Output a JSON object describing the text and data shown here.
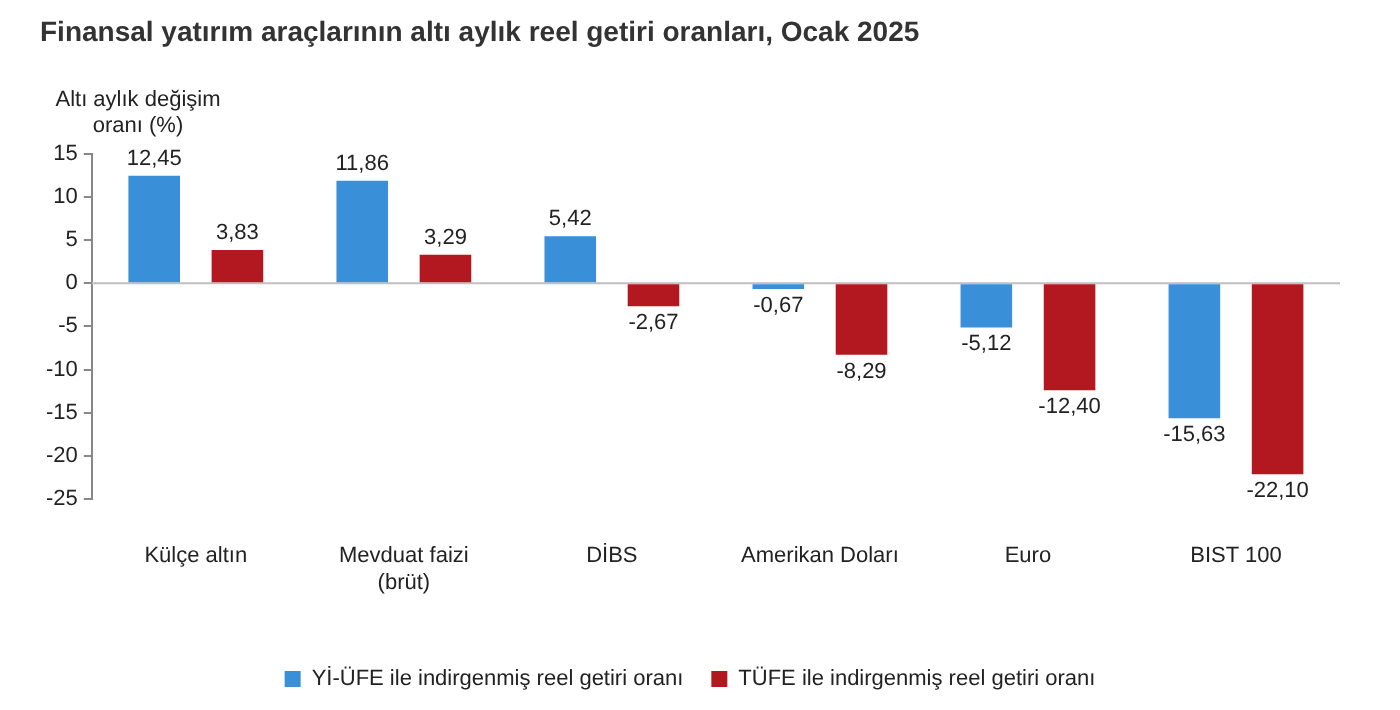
{
  "chart_data": {
    "type": "bar",
    "title": "Finansal yatırım araçlarının altı aylık reel getiri oranları, Ocak 2025",
    "ylabel": "Altı aylık değişim oranı (%)",
    "categories": [
      "Külçe altın",
      "Mevduat faizi (brüt)",
      "DİBS",
      "Amerikan Doları",
      "Euro",
      "BIST 100"
    ],
    "series": [
      {
        "name": "Yİ-ÜFE ile indirgenmiş reel getiri oranı",
        "color": "#3a8fd9",
        "values": [
          12.45,
          11.86,
          5.42,
          -0.67,
          -5.12,
          -15.63
        ],
        "value_labels": [
          "12,45",
          "11,86",
          "5,42",
          "-0,67",
          "-5,12",
          "-15,63"
        ]
      },
      {
        "name": "TÜFE ile indirgenmiş reel getiri oranı",
        "color": "#b3171f",
        "values": [
          3.83,
          3.29,
          -2.67,
          -8.29,
          -12.4,
          -22.1
        ],
        "value_labels": [
          "3,83",
          "3,29",
          "-2,67",
          "-8,29",
          "-12,40",
          "-22,10"
        ]
      }
    ],
    "ylim": [
      -25,
      15
    ],
    "yticks": [
      -25,
      -20,
      -15,
      -10,
      -5,
      0,
      5,
      10,
      15
    ],
    "grid": false,
    "legend": "bottom",
    "ref_lines": [
      {
        "axis": "y",
        "value": 0,
        "color": "#bfbfbf"
      }
    ]
  }
}
